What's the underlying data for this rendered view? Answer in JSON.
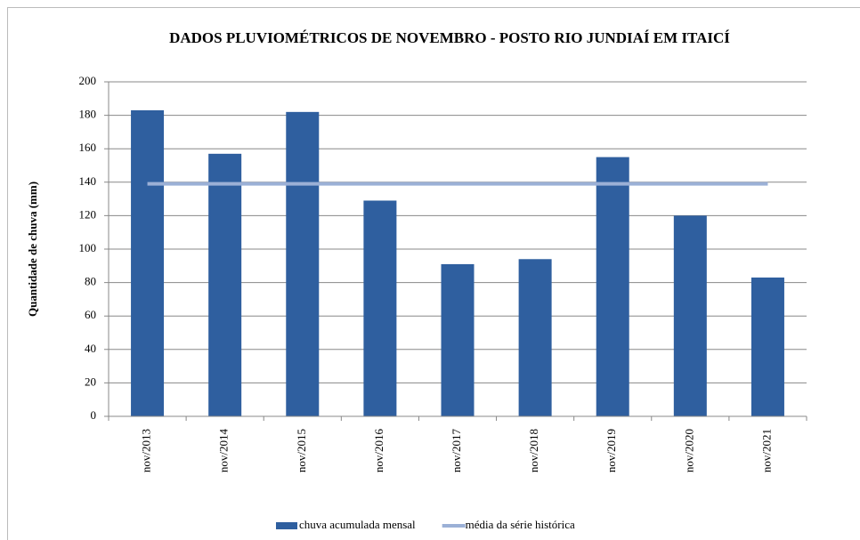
{
  "chart_data": {
    "type": "bar",
    "title": "DADOS PLUVIOMÉTRICOS DE NOVEMBRO - POSTO RIO JUNDIAÍ EM ITAICÍ",
    "y_label": "Quantidade de chuva (mm)",
    "categories": [
      "nov/2013",
      "nov/2014",
      "nov/2015",
      "nov/2016",
      "nov/2017",
      "nov/2018",
      "nov/2019",
      "nov/2020",
      "nov/2021"
    ],
    "series": [
      {
        "name": "chuva acumulada mensal",
        "type": "bar",
        "color": "#2f5f9f",
        "values": [
          183,
          157,
          182,
          129,
          91,
          94,
          155,
          120,
          83
        ]
      },
      {
        "name": "média da série histórica",
        "type": "line",
        "color": "#9bb0d6",
        "values": [
          139,
          139,
          139,
          139,
          139,
          139,
          139,
          139,
          139
        ]
      }
    ],
    "ylim": [
      0,
      200
    ],
    "yticks": [
      0,
      20,
      40,
      60,
      80,
      100,
      120,
      140,
      160,
      180,
      200
    ],
    "grid": true,
    "legend": "bottom"
  }
}
